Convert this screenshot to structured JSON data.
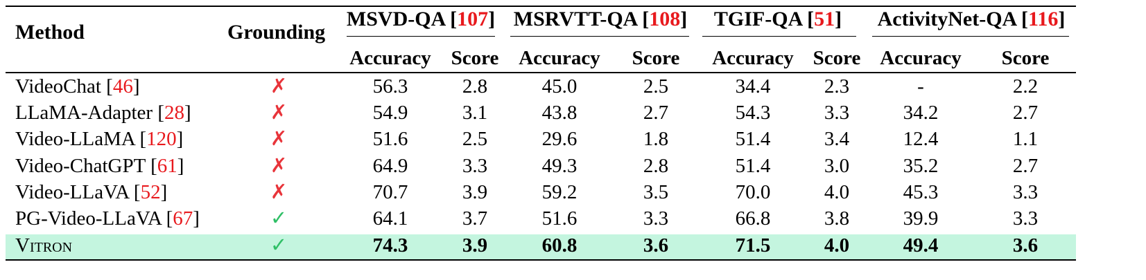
{
  "table": {
    "header": {
      "method": "Method",
      "grounding": "Grounding",
      "groups": [
        {
          "name": "MSVD-QA",
          "ref": "107"
        },
        {
          "name": "MSRVTT-QA",
          "ref": "108"
        },
        {
          "name": "TGIF-QA",
          "ref": "51"
        },
        {
          "name": "ActivityNet-QA",
          "ref": "116"
        }
      ],
      "sub": [
        "Accuracy",
        "Score",
        "Accuracy",
        "Score",
        "Accuracy",
        "Score",
        "Accuracy",
        "Score"
      ]
    },
    "rows": [
      {
        "method": "VideoChat",
        "ref": "46",
        "grounding": "✗",
        "values": [
          "56.3",
          "2.8",
          "45.0",
          "2.5",
          "34.4",
          "2.3",
          "-",
          "2.2"
        ]
      },
      {
        "method": "LLaMA-Adapter",
        "ref": "28",
        "grounding": "✗",
        "values": [
          "54.9",
          "3.1",
          "43.8",
          "2.7",
          "54.3",
          "3.3",
          "34.2",
          "2.7"
        ]
      },
      {
        "method": "Video-LLaMA",
        "ref": "120",
        "grounding": "✗",
        "values": [
          "51.6",
          "2.5",
          "29.6",
          "1.8",
          "51.4",
          "3.4",
          "12.4",
          "1.1"
        ]
      },
      {
        "method": "Video-ChatGPT",
        "ref": "61",
        "grounding": "✗",
        "values": [
          "64.9",
          "3.3",
          "49.3",
          "2.8",
          "51.4",
          "3.0",
          "35.2",
          "2.7"
        ]
      },
      {
        "method": "Video-LLaVA",
        "ref": "52",
        "grounding": "✗",
        "values": [
          "70.7",
          "3.9",
          "59.2",
          "3.5",
          "70.0",
          "4.0",
          "45.3",
          "3.3"
        ]
      },
      {
        "method": "PG-Video-LLaVA",
        "ref": "67",
        "grounding": "✓",
        "values": [
          "64.1",
          "3.7",
          "51.6",
          "3.3",
          "66.8",
          "3.8",
          "39.9",
          "3.3"
        ]
      },
      {
        "method": "Vitron",
        "ref": "",
        "grounding": "✓",
        "values": [
          "74.3",
          "3.9",
          "60.8",
          "3.6",
          "71.5",
          "4.0",
          "49.4",
          "3.6"
        ]
      }
    ]
  },
  "colors": {
    "highlight": "#c4f5df",
    "reference": "#e8191d",
    "cross": "#e8343a",
    "check": "#2fbf66"
  }
}
